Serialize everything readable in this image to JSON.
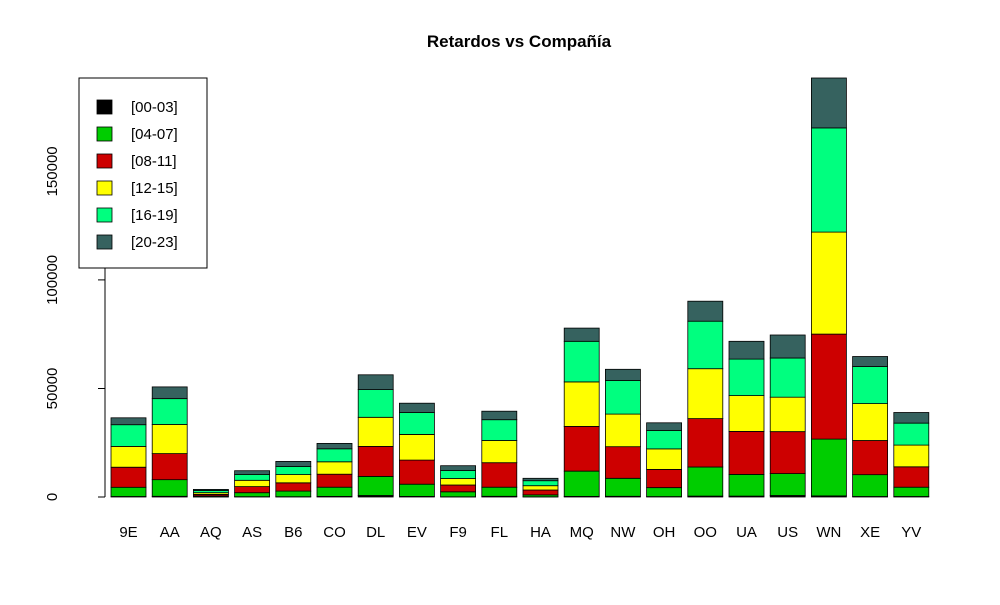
{
  "chart_data": {
    "type": "bar",
    "stacked": true,
    "title": "Retardos vs Compañía",
    "xlabel": "",
    "ylabel": "",
    "ylim": [
      0,
      193000
    ],
    "yticks": [
      0,
      50000,
      100000,
      150000
    ],
    "ytick_labels": [
      "0",
      "50000",
      "100000",
      "150000"
    ],
    "grid": false,
    "legend_position": "top-left",
    "categories": [
      "9E",
      "AA",
      "AQ",
      "AS",
      "B6",
      "CO",
      "DL",
      "EV",
      "F9",
      "FL",
      "HA",
      "MQ",
      "NW",
      "OH",
      "OO",
      "UA",
      "US",
      "WN",
      "XE",
      "YV"
    ],
    "series": [
      {
        "name": "[00-03]",
        "color": "#000000",
        "values": [
          200,
          300,
          100,
          150,
          100,
          250,
          700,
          300,
          100,
          300,
          100,
          300,
          300,
          200,
          400,
          400,
          700,
          500,
          200,
          200
        ]
      },
      {
        "name": "[04-07]",
        "color": "#00CD00",
        "values": [
          4300,
          7700,
          400,
          1850,
          2600,
          4250,
          8800,
          5600,
          2300,
          4200,
          900,
          11600,
          8300,
          4100,
          13400,
          10000,
          10100,
          26200,
          10100,
          4300
        ]
      },
      {
        "name": "[08-11]",
        "color": "#CD0000",
        "values": [
          9200,
          12000,
          700,
          2800,
          3800,
          6000,
          13800,
          11100,
          3100,
          11300,
          2200,
          20600,
          14600,
          8400,
          22300,
          19800,
          19300,
          48300,
          15700,
          9400
        ]
      },
      {
        "name": "[12-15]",
        "color": "#FFFF00",
        "values": [
          9600,
          13400,
          800,
          2900,
          3800,
          5700,
          13400,
          11800,
          3000,
          10200,
          2000,
          20500,
          15000,
          9500,
          23000,
          16500,
          15900,
          47000,
          17000,
          10000
        ]
      },
      {
        "name": "[16-19]",
        "color": "#00FF7F",
        "values": [
          10000,
          11900,
          1000,
          2700,
          3800,
          6000,
          12800,
          10100,
          3700,
          9600,
          2300,
          18700,
          15500,
          8500,
          21900,
          16800,
          18000,
          48000,
          17100,
          10100
        ]
      },
      {
        "name": "[20-23]",
        "color": "#36625F",
        "values": [
          3200,
          5400,
          500,
          1700,
          2300,
          2500,
          6800,
          4300,
          2200,
          3900,
          1100,
          6100,
          5100,
          3500,
          9200,
          8200,
          10600,
          23000,
          4600,
          4900
        ]
      }
    ]
  }
}
